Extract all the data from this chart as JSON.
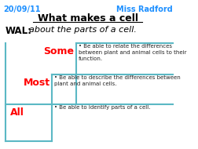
{
  "bg_color": "#ffffff",
  "date_text": "20/09/11",
  "teacher_text": "Miss Radford",
  "title_text": "What makes a cell",
  "wal_label": "WAL:",
  "wal_text": "about the parts of a cell.",
  "header_color": "#1E90FF",
  "staircase_color": "#5bb8c4",
  "label_color": "#ff0000",
  "some_label": "Some",
  "most_label": "Most",
  "all_label": "All",
  "some_text": "Be able to relate the differences\nbetween plant and animal cells to their\nfunction.",
  "most_text": "Be able to describe the differences between\nplant and animal cells.",
  "all_text": "Be able to identify parts of a cell.",
  "body_text_color": "#222222"
}
